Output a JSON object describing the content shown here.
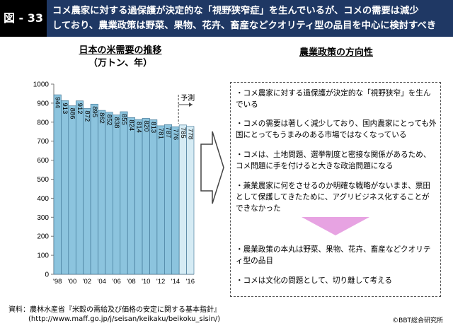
{
  "header": {
    "figure_label": "図 - 33",
    "title_line1": "コメ農家に対する過保護が決定的な「視野狭窄症」を生んでいるが、コメの需要は減少",
    "title_line2": "しており、農業政策は野菜、果物、花卉、畜産などクオリティ型の品目を中心に検討すべき"
  },
  "chart_title": {
    "line1": "日本の米需要の推移",
    "line2": "（万トン、年）"
  },
  "forecast_label": "予測",
  "chart_data": {
    "type": "bar",
    "title": "日本の米需要の推移",
    "subtitle": "（万トン、年）",
    "x": [
      1998,
      1999,
      2000,
      2001,
      2002,
      2003,
      2004,
      2005,
      2006,
      2007,
      2008,
      2009,
      2010,
      2011,
      2012,
      2013,
      2014,
      2015,
      2016
    ],
    "values": [
      944,
      913,
      886,
      912,
      872,
      895,
      862,
      852,
      838,
      855,
      824,
      814,
      820,
      813,
      781,
      787,
      776,
      785,
      778
    ],
    "value_labels": [
      "944",
      "913",
      "886",
      "912",
      "872",
      "895",
      "862",
      "852",
      "838",
      "855",
      "824",
      "814",
      "820",
      "813",
      "781",
      "787",
      "776",
      "785",
      "778"
    ],
    "forecast_from_index": 17,
    "x_tick_labels": [
      "'98",
      "'00",
      "'02",
      "'04",
      "'06",
      "'08",
      "'10",
      "'12",
      "'14",
      "'16"
    ],
    "y_ticks": [
      0,
      100,
      200,
      300,
      400,
      500,
      600,
      700,
      800,
      900,
      1000
    ],
    "ylim": [
      0,
      1000
    ],
    "grid": false,
    "colors": {
      "actual": "#8cc4de",
      "forecast": "#d5ebf4",
      "edge": "#3a6f8f"
    }
  },
  "policy": {
    "title": "農業政策の方向性",
    "bullets_top": [
      "・コメ農家に対する過保護が決定的な「視野狭窄」を生んでいる",
      "・コメの需要は著しく減少しており、国内農家にとっても外国にとってもうまみのある市場ではなくなっている",
      "・コメは、土地問題、選挙制度と密接な関係があるため、コメ問題に手を付けると大きな政治問題になる",
      "・兼業農家に何をさせるのか明確な戦略がないまま、票田として保護してきたために、アグリビジネス化することができなかった"
    ],
    "bullets_bottom": [
      "・農業政策の本丸は野菜、果物、花卉、畜産などクオリティ型の品目",
      "・コメは文化の問題として、切り離して考える"
    ]
  },
  "footer": {
    "source_line1": "資料：農林水産省『米穀の需給及び価格の安定に関する基本指針』",
    "source_line2": "(http://www.maff.go.jp/j/seisan/keikaku/beikoku_sisin/)",
    "credit": "©BBT総合研究所"
  }
}
